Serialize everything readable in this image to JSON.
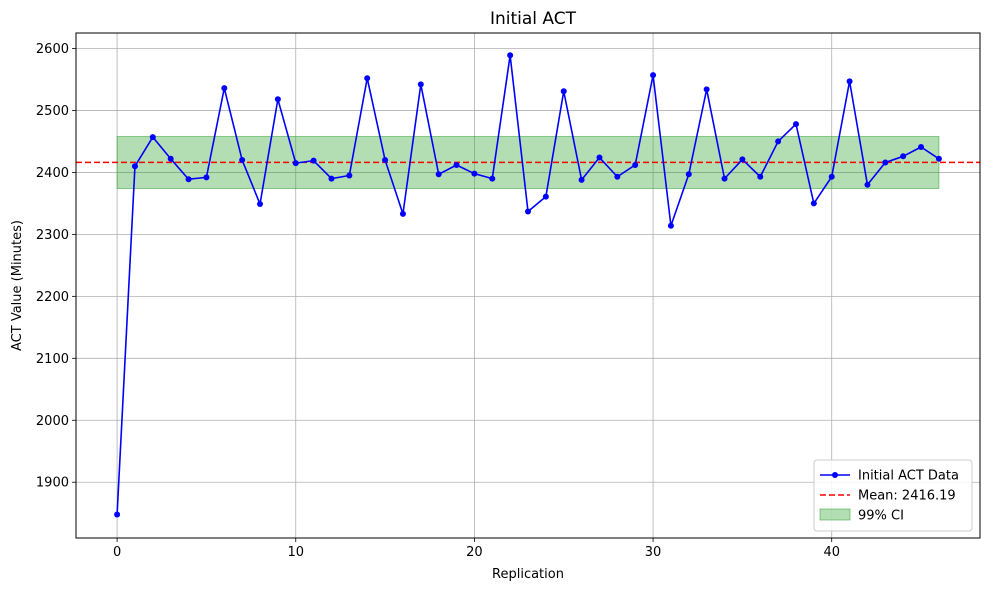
{
  "chart_data": {
    "type": "line",
    "title": "Initial ACT",
    "xlabel": "Replication",
    "ylabel": "ACT Value (Minutes)",
    "xlim": [
      -2.3,
      48.3
    ],
    "ylim": [
      1810,
      2625
    ],
    "xticks": [
      0,
      10,
      20,
      30,
      40
    ],
    "yticks": [
      1900,
      2000,
      2100,
      2200,
      2300,
      2400,
      2500,
      2600
    ],
    "grid": true,
    "legend_position": "lower-right",
    "series": [
      {
        "name": "Initial ACT Data",
        "color": "#0000ff",
        "x": [
          0,
          1,
          2,
          3,
          4,
          5,
          6,
          7,
          8,
          9,
          10,
          11,
          12,
          13,
          14,
          15,
          16,
          17,
          18,
          19,
          20,
          21,
          22,
          23,
          24,
          25,
          26,
          27,
          28,
          29,
          30,
          31,
          32,
          33,
          34,
          35,
          36,
          37,
          38,
          39,
          40,
          41,
          42,
          43,
          44,
          45,
          46
        ],
        "y": [
          1848,
          2410,
          2457,
          2422,
          2389,
          2392,
          2536,
          2420,
          2349,
          2518,
          2415,
          2419,
          2390,
          2395,
          2552,
          2420,
          2333,
          2542,
          2397,
          2412,
          2398,
          2390,
          2589,
          2337,
          2361,
          2531,
          2388,
          2424,
          2393,
          2412,
          2557,
          2314,
          2397,
          2534,
          2390,
          2421,
          2393,
          2450,
          2478,
          2350,
          2393,
          2547,
          2380,
          2416,
          2426,
          2441,
          2422
        ]
      }
    ],
    "mean": {
      "label": "Mean: 2416.19",
      "value": 2416.19,
      "color": "#ff0000"
    },
    "ci": {
      "label": "99% CI",
      "lower": 2374,
      "upper": 2458,
      "x_start": 0,
      "x_end": 46,
      "color": "#2ca02c"
    }
  }
}
